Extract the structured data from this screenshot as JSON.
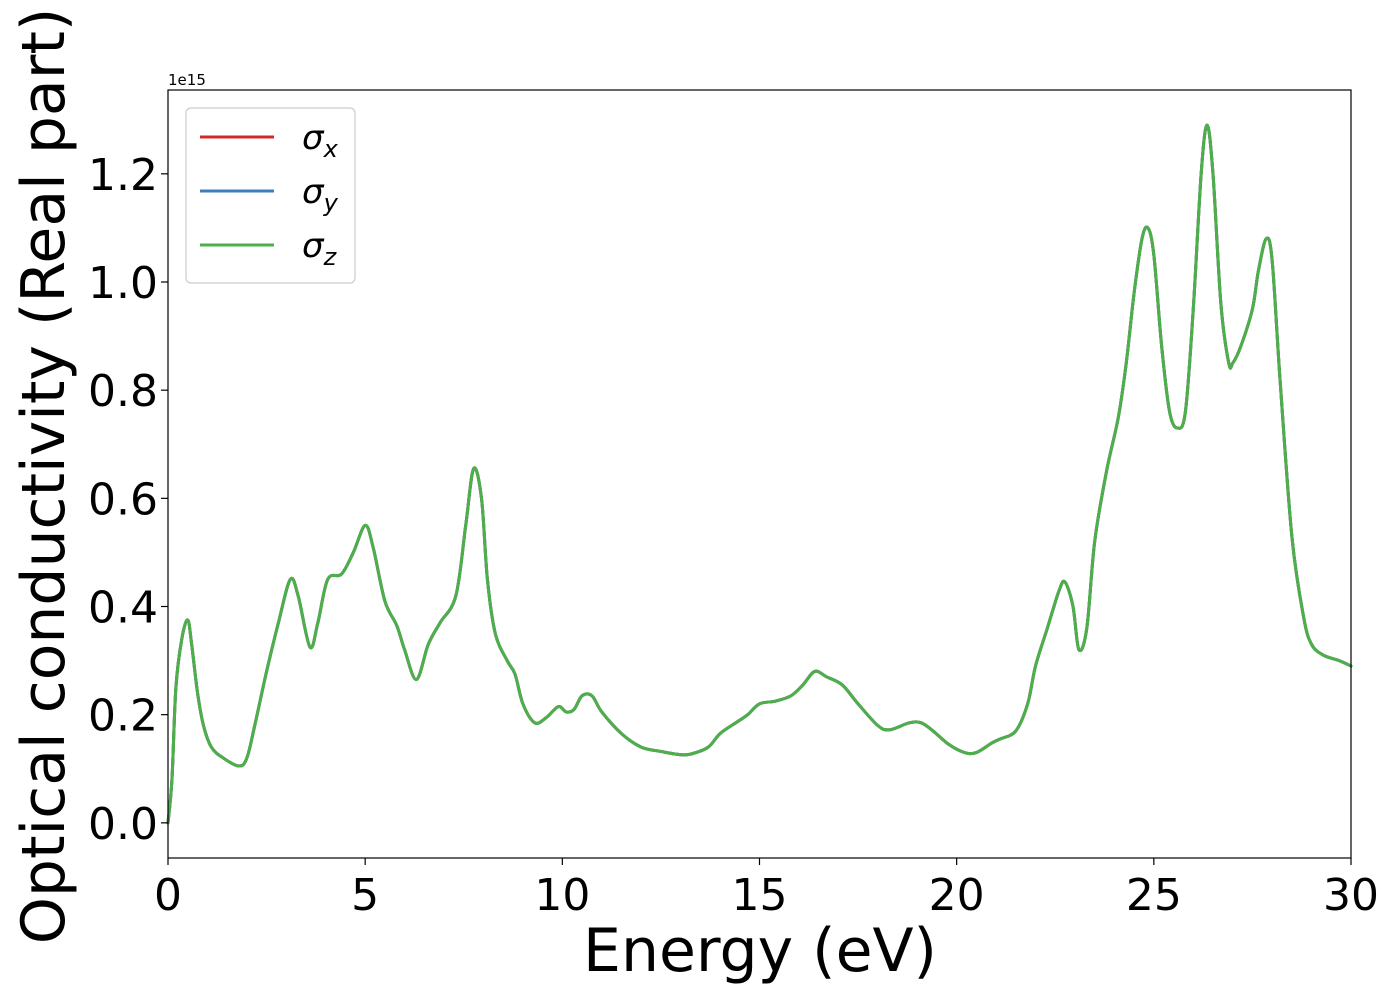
{
  "chart_data": {
    "type": "line",
    "xlabel": "Energy (eV)",
    "ylabel": "Optical conductivity (Real part)",
    "offset_text": "1e15",
    "xlim": [
      0,
      30
    ],
    "ylim": [
      -0.065,
      1.355
    ],
    "x_ticks": [
      0,
      5,
      10,
      15,
      20,
      25,
      30
    ],
    "y_ticks": [
      0.0,
      0.2,
      0.4,
      0.6,
      0.8,
      1.0,
      1.2
    ],
    "x_tick_labels": [
      "0",
      "5",
      "10",
      "15",
      "20",
      "25",
      "30"
    ],
    "y_tick_labels": [
      "0.0",
      "0.2",
      "0.4",
      "0.6",
      "0.8",
      "1.0",
      "1.2"
    ],
    "grid": false,
    "legend_position": "upper-left",
    "legend": [
      {
        "symbol": "σ",
        "sub": "x",
        "color": "#d62728"
      },
      {
        "symbol": "σ",
        "sub": "y",
        "color": "#3b7dbf"
      },
      {
        "symbol": "σ",
        "sub": "z",
        "color": "#4daf4a"
      }
    ],
    "x": [
      0,
      0.1,
      0.2,
      0.35,
      0.5,
      0.6,
      0.75,
      0.9,
      1.1,
      1.4,
      1.8,
      2.0,
      2.2,
      2.5,
      2.8,
      3.1,
      3.3,
      3.6,
      3.8,
      4.05,
      4.4,
      4.7,
      5.0,
      5.2,
      5.5,
      5.8,
      6.0,
      6.3,
      6.6,
      6.9,
      7.3,
      7.55,
      7.75,
      7.95,
      8.1,
      8.3,
      8.6,
      8.8,
      9.0,
      9.3,
      9.6,
      9.9,
      10.1,
      10.3,
      10.5,
      10.75,
      11.0,
      11.5,
      12.0,
      12.5,
      13.0,
      13.3,
      13.7,
      14.0,
      14.4,
      14.7,
      15.0,
      15.4,
      15.8,
      16.1,
      16.4,
      16.7,
      17.1,
      17.5,
      18.0,
      18.3,
      18.8,
      19.1,
      19.4,
      19.8,
      20.2,
      20.5,
      20.9,
      21.1,
      21.5,
      21.8,
      22.0,
      22.3,
      22.6,
      22.75,
      22.95,
      23.1,
      23.3,
      23.5,
      23.8,
      24.1,
      24.3,
      24.5,
      24.7,
      24.85,
      25.0,
      25.2,
      25.4,
      25.6,
      25.8,
      26.0,
      26.2,
      26.35,
      26.5,
      26.7,
      26.9,
      27.0,
      27.2,
      27.5,
      27.65,
      27.85,
      28.0,
      28.2,
      28.5,
      28.8,
      29.0,
      29.3,
      29.7,
      30.0
    ],
    "series": [
      {
        "name": "σx",
        "color": "#d62728",
        "values": [
          0.0,
          0.08,
          0.25,
          0.34,
          0.375,
          0.33,
          0.24,
          0.18,
          0.14,
          0.12,
          0.105,
          0.12,
          0.18,
          0.28,
          0.37,
          0.45,
          0.42,
          0.325,
          0.37,
          0.45,
          0.46,
          0.5,
          0.55,
          0.51,
          0.41,
          0.365,
          0.32,
          0.265,
          0.33,
          0.37,
          0.42,
          0.55,
          0.655,
          0.6,
          0.45,
          0.35,
          0.3,
          0.275,
          0.22,
          0.185,
          0.195,
          0.215,
          0.205,
          0.21,
          0.235,
          0.235,
          0.205,
          0.165,
          0.14,
          0.132,
          0.126,
          0.128,
          0.14,
          0.165,
          0.185,
          0.2,
          0.22,
          0.225,
          0.235,
          0.255,
          0.28,
          0.27,
          0.255,
          0.22,
          0.18,
          0.172,
          0.185,
          0.185,
          0.17,
          0.145,
          0.13,
          0.13,
          0.148,
          0.155,
          0.17,
          0.22,
          0.29,
          0.36,
          0.43,
          0.445,
          0.4,
          0.32,
          0.36,
          0.52,
          0.65,
          0.75,
          0.85,
          0.98,
          1.08,
          1.1,
          1.05,
          0.88,
          0.76,
          0.73,
          0.76,
          0.95,
          1.2,
          1.29,
          1.2,
          0.96,
          0.85,
          0.85,
          0.88,
          0.95,
          1.02,
          1.08,
          1.04,
          0.82,
          0.53,
          0.38,
          0.33,
          0.31,
          0.3,
          0.29
        ]
      },
      {
        "name": "σy",
        "color": "#3b7dbf",
        "values": [
          0.0,
          0.08,
          0.25,
          0.34,
          0.375,
          0.33,
          0.24,
          0.18,
          0.14,
          0.12,
          0.105,
          0.12,
          0.18,
          0.28,
          0.37,
          0.45,
          0.42,
          0.325,
          0.37,
          0.45,
          0.46,
          0.5,
          0.55,
          0.51,
          0.41,
          0.365,
          0.32,
          0.265,
          0.33,
          0.37,
          0.42,
          0.55,
          0.655,
          0.6,
          0.45,
          0.35,
          0.3,
          0.275,
          0.22,
          0.185,
          0.195,
          0.215,
          0.205,
          0.21,
          0.235,
          0.235,
          0.205,
          0.165,
          0.14,
          0.132,
          0.126,
          0.128,
          0.14,
          0.165,
          0.185,
          0.2,
          0.22,
          0.225,
          0.235,
          0.255,
          0.28,
          0.27,
          0.255,
          0.22,
          0.18,
          0.172,
          0.185,
          0.185,
          0.17,
          0.145,
          0.13,
          0.13,
          0.148,
          0.155,
          0.17,
          0.22,
          0.29,
          0.36,
          0.43,
          0.445,
          0.4,
          0.32,
          0.36,
          0.52,
          0.65,
          0.75,
          0.85,
          0.98,
          1.08,
          1.1,
          1.05,
          0.88,
          0.76,
          0.73,
          0.76,
          0.95,
          1.2,
          1.29,
          1.2,
          0.96,
          0.85,
          0.85,
          0.88,
          0.95,
          1.02,
          1.08,
          1.04,
          0.82,
          0.53,
          0.38,
          0.33,
          0.31,
          0.3,
          0.29
        ]
      },
      {
        "name": "σz",
        "color": "#4daf4a",
        "values": [
          0.0,
          0.08,
          0.25,
          0.34,
          0.375,
          0.33,
          0.24,
          0.18,
          0.14,
          0.12,
          0.105,
          0.12,
          0.18,
          0.28,
          0.37,
          0.45,
          0.42,
          0.325,
          0.37,
          0.45,
          0.46,
          0.5,
          0.55,
          0.51,
          0.41,
          0.365,
          0.32,
          0.265,
          0.33,
          0.37,
          0.42,
          0.55,
          0.655,
          0.6,
          0.45,
          0.35,
          0.3,
          0.275,
          0.22,
          0.185,
          0.195,
          0.215,
          0.205,
          0.21,
          0.235,
          0.235,
          0.205,
          0.165,
          0.14,
          0.132,
          0.126,
          0.128,
          0.14,
          0.165,
          0.185,
          0.2,
          0.22,
          0.225,
          0.235,
          0.255,
          0.28,
          0.27,
          0.255,
          0.22,
          0.18,
          0.172,
          0.185,
          0.185,
          0.17,
          0.145,
          0.13,
          0.13,
          0.148,
          0.155,
          0.17,
          0.22,
          0.29,
          0.36,
          0.43,
          0.445,
          0.4,
          0.32,
          0.36,
          0.52,
          0.65,
          0.75,
          0.85,
          0.98,
          1.08,
          1.1,
          1.05,
          0.88,
          0.76,
          0.73,
          0.76,
          0.95,
          1.2,
          1.29,
          1.2,
          0.96,
          0.85,
          0.85,
          0.88,
          0.95,
          1.02,
          1.08,
          1.04,
          0.82,
          0.53,
          0.38,
          0.33,
          0.31,
          0.3,
          0.29
        ]
      }
    ]
  }
}
